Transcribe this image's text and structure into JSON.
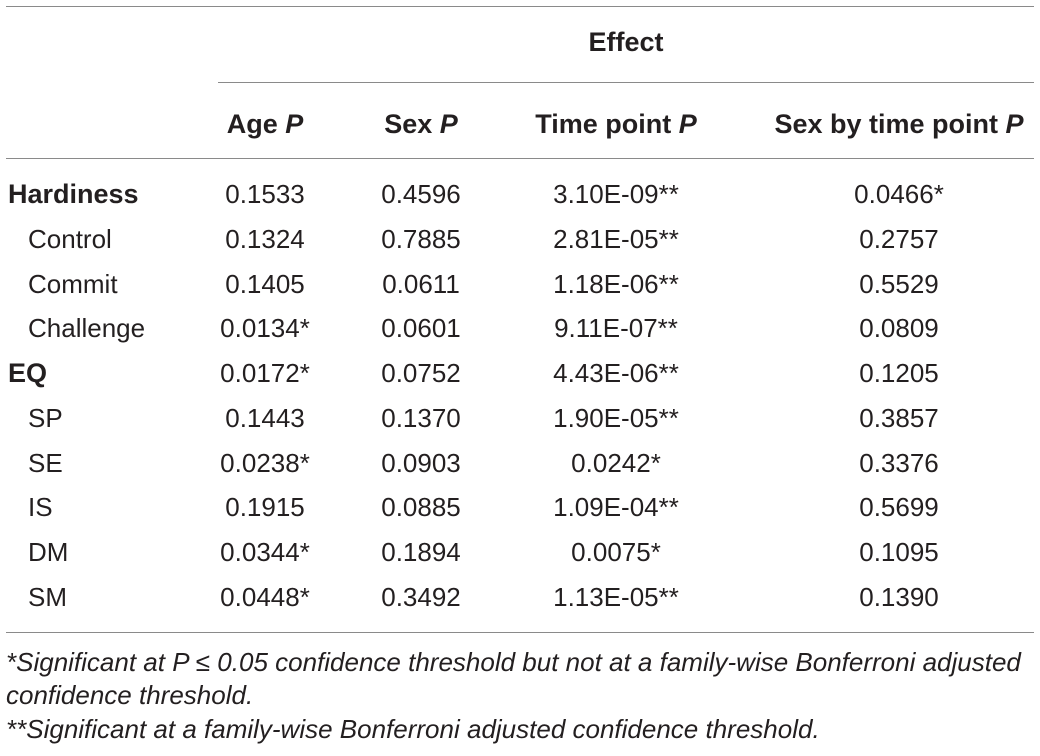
{
  "table": {
    "group_header": "Effect",
    "columns": [
      {
        "label": "Age",
        "suffix": "P"
      },
      {
        "label": "Sex",
        "suffix": "P"
      },
      {
        "label": "Time point",
        "suffix": "P"
      },
      {
        "label": "Sex by time point",
        "suffix": "P"
      }
    ],
    "rows": [
      {
        "label": "Hardiness",
        "values": [
          "0.1533",
          "0.4596",
          "3.10E-09**",
          "0.0466*"
        ]
      },
      {
        "label": "Control",
        "values": [
          "0.1324",
          "0.7885",
          "2.81E-05**",
          "0.2757"
        ]
      },
      {
        "label": "Commit",
        "values": [
          "0.1405",
          "0.0611",
          "1.18E-06**",
          "0.5529"
        ]
      },
      {
        "label": "Challenge",
        "values": [
          "0.0134*",
          "0.0601",
          "9.11E-07**",
          "0.0809"
        ]
      },
      {
        "label": "EQ",
        "values": [
          "0.0172*",
          "0.0752",
          "4.43E-06**",
          "0.1205"
        ]
      },
      {
        "label": "SP",
        "values": [
          "0.1443",
          "0.1370",
          "1.90E-05**",
          "0.3857"
        ]
      },
      {
        "label": "SE",
        "values": [
          "0.0238*",
          "0.0903",
          "0.0242*",
          "0.3376"
        ]
      },
      {
        "label": "IS",
        "values": [
          "0.1915",
          "0.0885",
          "1.09E-04**",
          "0.5699"
        ]
      },
      {
        "label": "DM",
        "values": [
          "0.0344*",
          "0.1894",
          "0.0075*",
          "0.1095"
        ]
      },
      {
        "label": "SM",
        "values": [
          "0.0448*",
          "0.3492",
          "1.13E-05**",
          "0.1390"
        ]
      }
    ]
  },
  "footnotes": {
    "single": "*Significant at P ≤ 0.05 confidence threshold but not at a family-wise Bonferroni adjusted confidence threshold.",
    "double": "**Significant at a family-wise Bonferroni adjusted confidence threshold."
  }
}
